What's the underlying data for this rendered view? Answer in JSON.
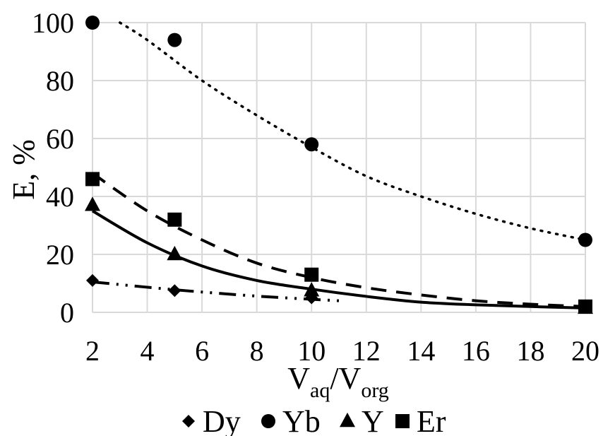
{
  "chart_data": {
    "type": "scatter",
    "xlabel": {
      "main": "V",
      "sub1": "aq",
      "slash": "/V",
      "sub2": "org"
    },
    "ylabel": "E, %",
    "xlim": [
      2,
      20
    ],
    "ylim": [
      0,
      100
    ],
    "x_ticks": [
      "2",
      "4",
      "6",
      "8",
      "10",
      "12",
      "14",
      "16",
      "18",
      "20"
    ],
    "y_ticks": [
      "0",
      "20",
      "40",
      "60",
      "80",
      "100"
    ],
    "grid": true,
    "legend_position": "bottom",
    "series": [
      {
        "name": "Dy",
        "marker": "diamond",
        "trendline": "dash-dot-dot",
        "points": [
          {
            "x": 2,
            "y": 11
          },
          {
            "x": 5,
            "y": 7.5
          },
          {
            "x": 10,
            "y": 5
          }
        ]
      },
      {
        "name": "Yb",
        "marker": "circle",
        "trendline": "dotted",
        "points": [
          {
            "x": 2,
            "y": 100
          },
          {
            "x": 5,
            "y": 94
          },
          {
            "x": 10,
            "y": 58
          },
          {
            "x": 20,
            "y": 25
          }
        ]
      },
      {
        "name": "Y",
        "marker": "triangle",
        "trendline": "solid",
        "points": [
          {
            "x": 2,
            "y": 37
          },
          {
            "x": 5,
            "y": 20
          },
          {
            "x": 10,
            "y": 7.5
          },
          {
            "x": 20,
            "y": 1.5
          }
        ]
      },
      {
        "name": "Er",
        "marker": "square",
        "trendline": "dashed",
        "points": [
          {
            "x": 2,
            "y": 46
          },
          {
            "x": 5,
            "y": 32
          },
          {
            "x": 10,
            "y": 13
          },
          {
            "x": 20,
            "y": 2
          }
        ]
      }
    ],
    "trendlines": [
      {
        "series": "Dy",
        "points": [
          {
            "x": 2,
            "y": 10.5
          },
          {
            "x": 5,
            "y": 7.8
          },
          {
            "x": 8,
            "y": 5.6
          },
          {
            "x": 11,
            "y": 4.0
          }
        ]
      },
      {
        "series": "Yb",
        "points": [
          {
            "x": 3,
            "y": 100
          },
          {
            "x": 4,
            "y": 94
          },
          {
            "x": 6,
            "y": 80
          },
          {
            "x": 8,
            "y": 68
          },
          {
            "x": 10,
            "y": 57
          },
          {
            "x": 12,
            "y": 47
          },
          {
            "x": 14,
            "y": 40
          },
          {
            "x": 16,
            "y": 34
          },
          {
            "x": 18,
            "y": 29
          },
          {
            "x": 20,
            "y": 25
          }
        ]
      },
      {
        "series": "Y",
        "points": [
          {
            "x": 2,
            "y": 35
          },
          {
            "x": 4,
            "y": 24
          },
          {
            "x": 6,
            "y": 16
          },
          {
            "x": 8,
            "y": 11
          },
          {
            "x": 10,
            "y": 8
          },
          {
            "x": 12,
            "y": 5.5
          },
          {
            "x": 14,
            "y": 3.5
          },
          {
            "x": 16,
            "y": 2.6
          },
          {
            "x": 18,
            "y": 2.0
          },
          {
            "x": 20,
            "y": 1.5
          }
        ]
      },
      {
        "series": "Er",
        "points": [
          {
            "x": 2,
            "y": 48
          },
          {
            "x": 4,
            "y": 35
          },
          {
            "x": 6,
            "y": 25
          },
          {
            "x": 8,
            "y": 17
          },
          {
            "x": 10,
            "y": 12
          },
          {
            "x": 12,
            "y": 8.5
          },
          {
            "x": 14,
            "y": 6
          },
          {
            "x": 16,
            "y": 4
          },
          {
            "x": 18,
            "y": 2.8
          },
          {
            "x": 20,
            "y": 2
          }
        ]
      }
    ]
  }
}
